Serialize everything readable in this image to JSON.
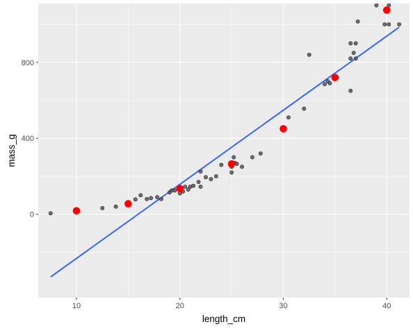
{
  "chart_data": {
    "type": "scatter",
    "title": "",
    "xlabel": "length_cm",
    "ylabel": "mass_g",
    "xlim": [
      6.3,
      42.2
    ],
    "ylim": [
      -440,
      1110
    ],
    "x_ticks": [
      10,
      20,
      30,
      40
    ],
    "y_ticks": [
      0,
      400,
      800
    ],
    "x_tick_labels": [
      "10",
      "20",
      "30",
      "40"
    ],
    "y_tick_labels": [
      "0",
      "400",
      "800"
    ],
    "grid": true,
    "legend": "none",
    "colors": {
      "panel": "#EBEBEB",
      "grid": "#FFFFFF",
      "points": "#595959",
      "point_edge": "#1a1a1a",
      "highlight": "#FF0000",
      "fit_line": "#3366FF"
    },
    "series": [
      {
        "kind": "points",
        "x": [
          7.5,
          12.5,
          13.8,
          15.0,
          15.7,
          16.2,
          16.8,
          17.2,
          17.8,
          18.2,
          19.0,
          19.2,
          19.5,
          19.9,
          20.0,
          20.3,
          20.5,
          20.8,
          21.0,
          21.3,
          21.8,
          22.0,
          22.0,
          22.5,
          23.0,
          23.5,
          24.0,
          25.0,
          25.0,
          25.2,
          25.3,
          25.5,
          26.0,
          27.0,
          27.8,
          30.0,
          30.5,
          32.0,
          32.5,
          34.0,
          34.3,
          34.5,
          35.0,
          36.5,
          36.5,
          36.5,
          36.8,
          37.0,
          37.0,
          37.2,
          39.0,
          39.8,
          40.2,
          40.2,
          41.2
        ],
        "y": [
          5,
          32,
          40,
          55,
          78,
          100,
          80,
          85,
          90,
          80,
          115,
          125,
          125,
          140,
          110,
          120,
          145,
          130,
          145,
          150,
          170,
          145,
          225,
          195,
          185,
          200,
          260,
          220,
          250,
          300,
          270,
          265,
          250,
          300,
          320,
          450,
          510,
          556,
          840,
          685,
          700,
          690,
          720,
          650,
          820,
          900,
          850,
          900,
          820,
          1015,
          1100,
          1000,
          1000,
          1100,
          1000
        ]
      },
      {
        "kind": "highlight-points",
        "x": [
          10,
          15,
          20,
          25,
          30,
          35,
          40
        ],
        "y": [
          18,
          55,
          135,
          265,
          450,
          720,
          1075
        ]
      },
      {
        "kind": "linear-fit",
        "x": [
          7.5,
          41.2
        ],
        "y": [
          -330,
          985
        ]
      }
    ]
  }
}
